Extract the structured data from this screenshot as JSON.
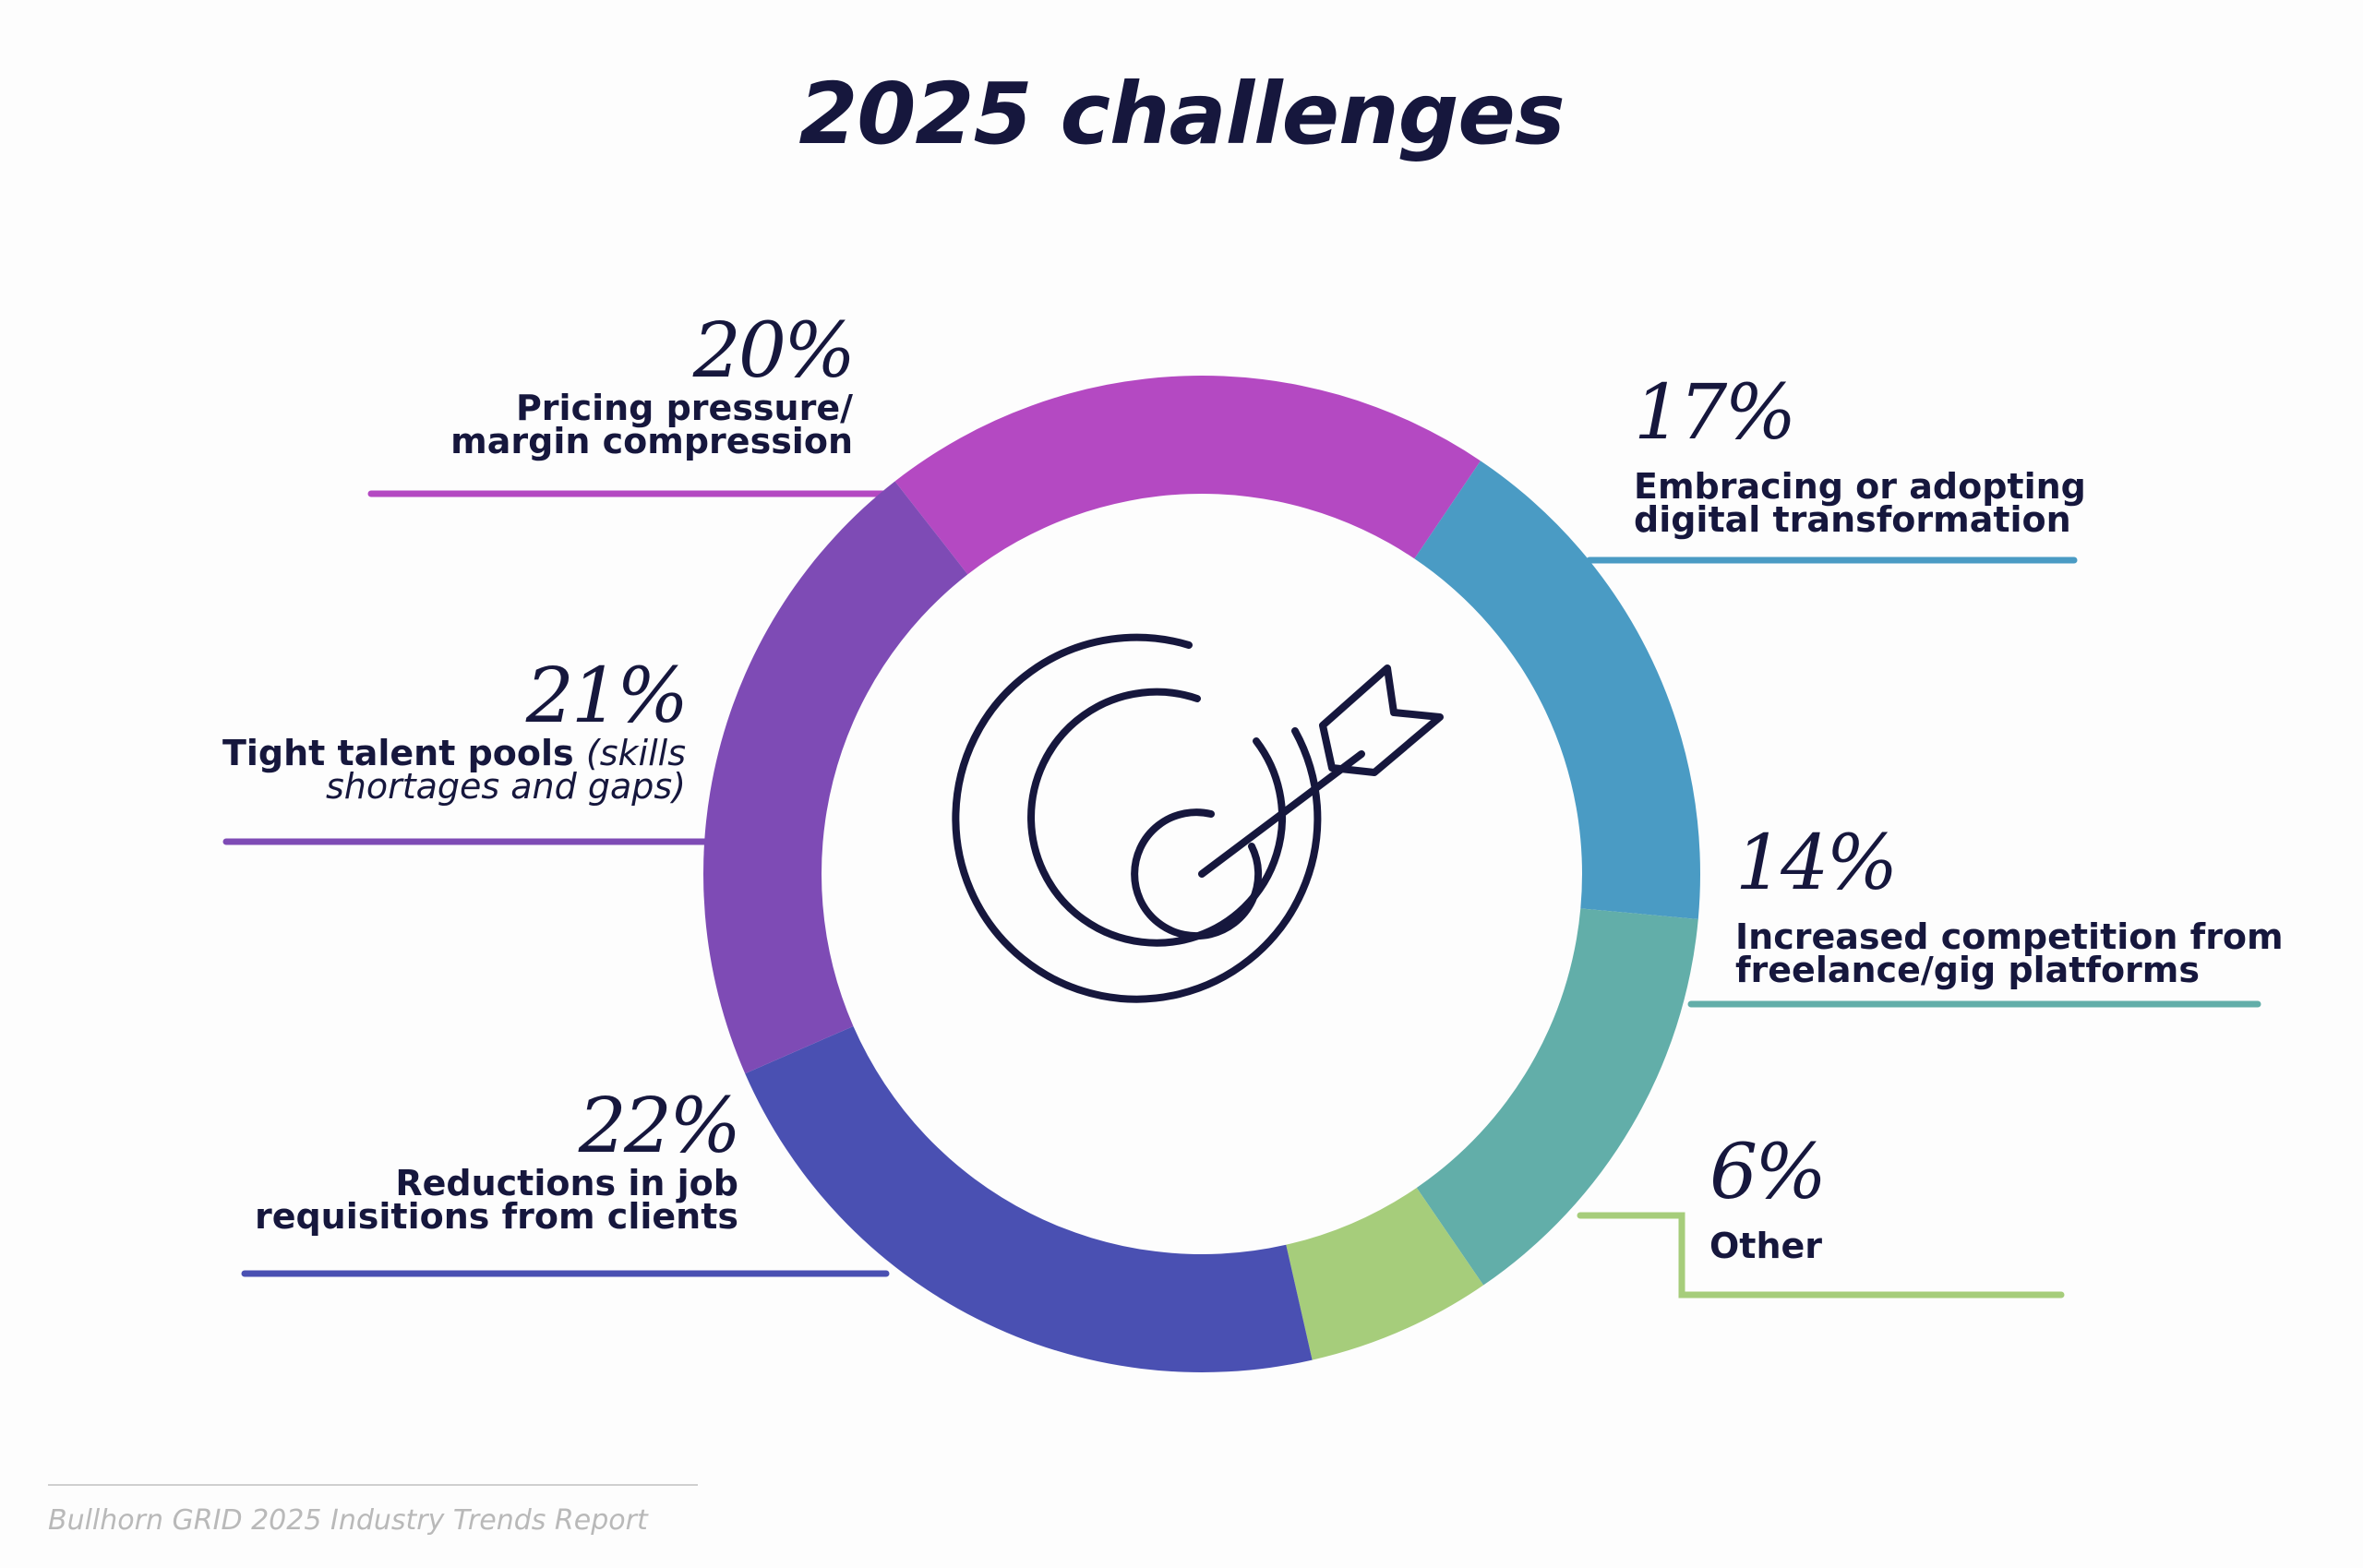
{
  "title": "2025 challenges",
  "source": "Bullhorn GRID 2025 Industry Trends Report",
  "chart_data": {
    "type": "pie",
    "title": "2025 challenges",
    "slices": [
      {
        "value": 20,
        "pct_label": "20%",
        "label": "Pricing pressure/ margin compression",
        "label_lines": [
          "Pricing pressure/",
          "margin compression"
        ],
        "color": "#b449c2"
      },
      {
        "value": 17,
        "pct_label": "17%",
        "label": "Embracing or adopting digital transformation",
        "label_lines": [
          "Embracing or adopting",
          "digital transformation"
        ],
        "color": "#4a9bc4"
      },
      {
        "value": 14,
        "pct_label": "14%",
        "label": "Increased competition from freelance/gig platforms",
        "label_lines": [
          "Increased competition from",
          "freelance/gig platforms"
        ],
        "color": "#62aea9"
      },
      {
        "value": 6,
        "pct_label": "6%",
        "label": "Other",
        "label_lines": [
          "Other"
        ],
        "color": "#a6cd7b"
      },
      {
        "value": 22,
        "pct_label": "22%",
        "label": "Reductions in job requisitions from clients",
        "label_lines": [
          "Reductions in job",
          "requisitions from clients"
        ],
        "color": "#4a50b2"
      },
      {
        "value": 21,
        "pct_label": "21%",
        "label": "Tight talent pools (skills shortages and gaps)",
        "label_lines": [
          "Tight talent pools",
          "(skills",
          "shortages and gaps)"
        ],
        "color": "#7e4bb5"
      }
    ],
    "center_icon": "target-with-arrow-icon",
    "ink_color": "#16173d"
  }
}
